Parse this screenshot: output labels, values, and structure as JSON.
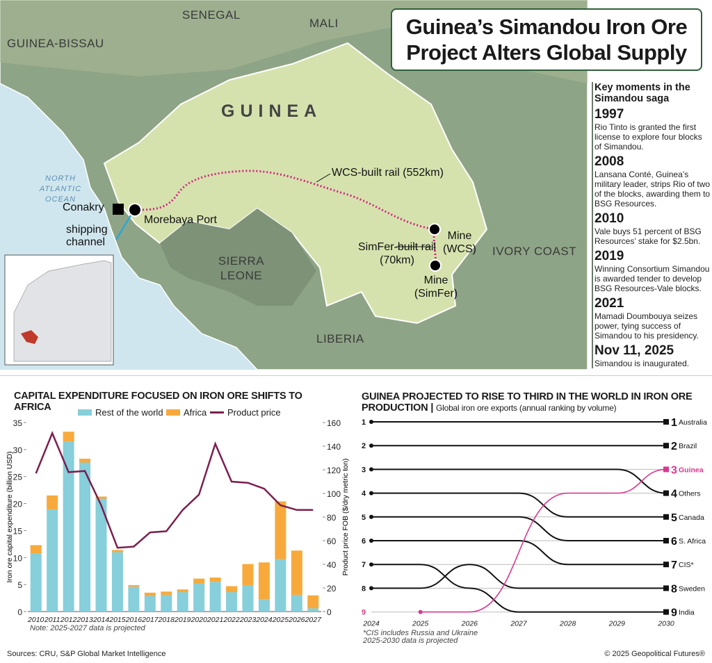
{
  "title": "Guinea’s Simandou Iron Ore Project Alters Global Supply",
  "map": {
    "countries": [
      "SENEGAL",
      "MALI",
      "GUINEA-BISSAU",
      "GUINEA",
      "SIERRA LEONE",
      "LIBERIA",
      "IVORY COAST"
    ],
    "ocean": "NORTH ATLANTIC OCEAN",
    "places": {
      "conakry": "Conakry",
      "port": "Morebaya Port",
      "channel": "shipping channel",
      "wcs_rail": "WCS-built rail (552km)",
      "simfer_rail": "SimFer-built rail (70km)",
      "mine_wcs": "Mine (WCS)",
      "mine_simfer": "Mine (SimFer)"
    },
    "colors": {
      "ocean": "#cfe6ee",
      "land": "#8ea486",
      "guinea": "#d6e2ae",
      "rail": "#d0257f",
      "inset_highlight": "#c0392b"
    }
  },
  "timeline": {
    "heading": "Key moments in the Simandou saga",
    "events": [
      {
        "year": "1997",
        "text": "Rio Tinto is granted the first license to explore four blocks of Simandou."
      },
      {
        "year": "2008",
        "text": "Lansana Conté, Guinea’s military leader, strips Rio of two of the blocks, awarding them to BSG Resources."
      },
      {
        "year": "2010",
        "text": "Vale buys 51 percent of BSG Resources’ stake for $2.5bn."
      },
      {
        "year": "2019",
        "text": "Winning Consortium Simandou is awarded tender to develop BSG Resources-Vale blocks."
      },
      {
        "year": "2021",
        "text": "Mamadi Doumbouya seizes power, tying success of Simandou to his presidency."
      },
      {
        "year": "Nov 11, 2025",
        "text": "Simandou is inaugurated."
      }
    ]
  },
  "chart_data": [
    {
      "type": "bar",
      "stacked": true,
      "title": "CAPITAL EXPENDITURE FOCUSED ON IRON ORE SHIFTS TO AFRICA",
      "categories": [
        "2010",
        "2011",
        "2012",
        "2013",
        "2014",
        "2015",
        "2016",
        "2017",
        "2018",
        "2019",
        "2020",
        "2021",
        "2022",
        "2023",
        "2024",
        "2025",
        "2026",
        "2027"
      ],
      "ylabel": "Iron ore capital expenditure (billion USD)",
      "ylim": [
        0,
        35
      ],
      "yticks": [
        0,
        5,
        10,
        15,
        20,
        25,
        30,
        35
      ],
      "y2label": "Product price FOB ($/dry metric ton)",
      "y2lim": [
        0,
        160
      ],
      "y2ticks": [
        0,
        20,
        40,
        60,
        80,
        100,
        120,
        140,
        160
      ],
      "legend": "top",
      "series": [
        {
          "name": "Rest of the world",
          "color": "#86cfdb",
          "values": [
            10.8,
            18.9,
            31.5,
            27.6,
            20.9,
            11.0,
            4.6,
            2.9,
            3.1,
            3.6,
            5.2,
            5.5,
            3.6,
            4.9,
            2.3,
            9.7,
            3.1,
            0.6
          ]
        },
        {
          "name": "Africa",
          "color": "#f7aa3b",
          "values": [
            1.5,
            2.6,
            1.8,
            0.7,
            0.4,
            0.4,
            0.3,
            0.6,
            0.6,
            0.5,
            0.9,
            0.8,
            1.1,
            3.9,
            6.8,
            10.7,
            8.2,
            2.4
          ]
        },
        {
          "name": "Product price",
          "type": "line",
          "axis": "right",
          "color": "#7b1f4f",
          "values": [
            117,
            151,
            118,
            119,
            90,
            54,
            55,
            67,
            68,
            86,
            99,
            142,
            110,
            109,
            104,
            90,
            86,
            86
          ]
        }
      ],
      "note": "Note: 2025-2027 data is projected"
    },
    {
      "type": "line",
      "subtype": "bump",
      "title": "GUINEA PROJECTED TO RISE TO THIRD IN THE WORLD IN IRON ORE PRODUCTION",
      "subtitle": "Global iron ore exports (annual ranking by volume)",
      "x": [
        "2024",
        "2025",
        "2026",
        "2027",
        "2028",
        "2029",
        "2030"
      ],
      "ranks_axis": [
        "1",
        "2",
        "3",
        "4",
        "5",
        "6",
        "7",
        "8",
        "9"
      ],
      "highlight_color": "#d63a8f",
      "series": [
        {
          "name": "Australia",
          "final": "1",
          "values": [
            1,
            1,
            1,
            1,
            1,
            1,
            1
          ]
        },
        {
          "name": "Brazil",
          "final": "2",
          "values": [
            2,
            2,
            2,
            2,
            2,
            2,
            2
          ]
        },
        {
          "name": "Guinea",
          "final": "3",
          "highlight": true,
          "values": [
            null,
            9,
            9,
            null,
            4,
            4,
            3
          ]
        },
        {
          "name": "Others",
          "final": "4",
          "values": [
            3,
            3,
            3,
            3,
            3,
            3,
            4
          ]
        },
        {
          "name": "Canada",
          "final": "5",
          "values": [
            4,
            4,
            4,
            4,
            5,
            5,
            5
          ]
        },
        {
          "name": "S. Africa",
          "final": "6",
          "values": [
            5,
            5,
            5,
            5,
            6,
            6,
            6
          ]
        },
        {
          "name": "CIS*",
          "final": "7",
          "values": [
            6,
            6,
            6,
            6,
            7,
            7,
            7
          ]
        },
        {
          "name": "Sweden",
          "final": "8",
          "values": [
            8,
            8,
            7,
            8,
            8,
            8,
            8
          ]
        },
        {
          "name": "India",
          "final": "9",
          "values": [
            7,
            7,
            8,
            9,
            9,
            9,
            9
          ]
        }
      ],
      "notes": [
        "*CIS includes Russia and Ukraine",
        "2025-2030 data is projected"
      ]
    }
  ],
  "footer": {
    "sources": "Sources: CRU, S&P Global Market Intelligence",
    "copyright": "© 2025 Geopolitical Futures®"
  }
}
